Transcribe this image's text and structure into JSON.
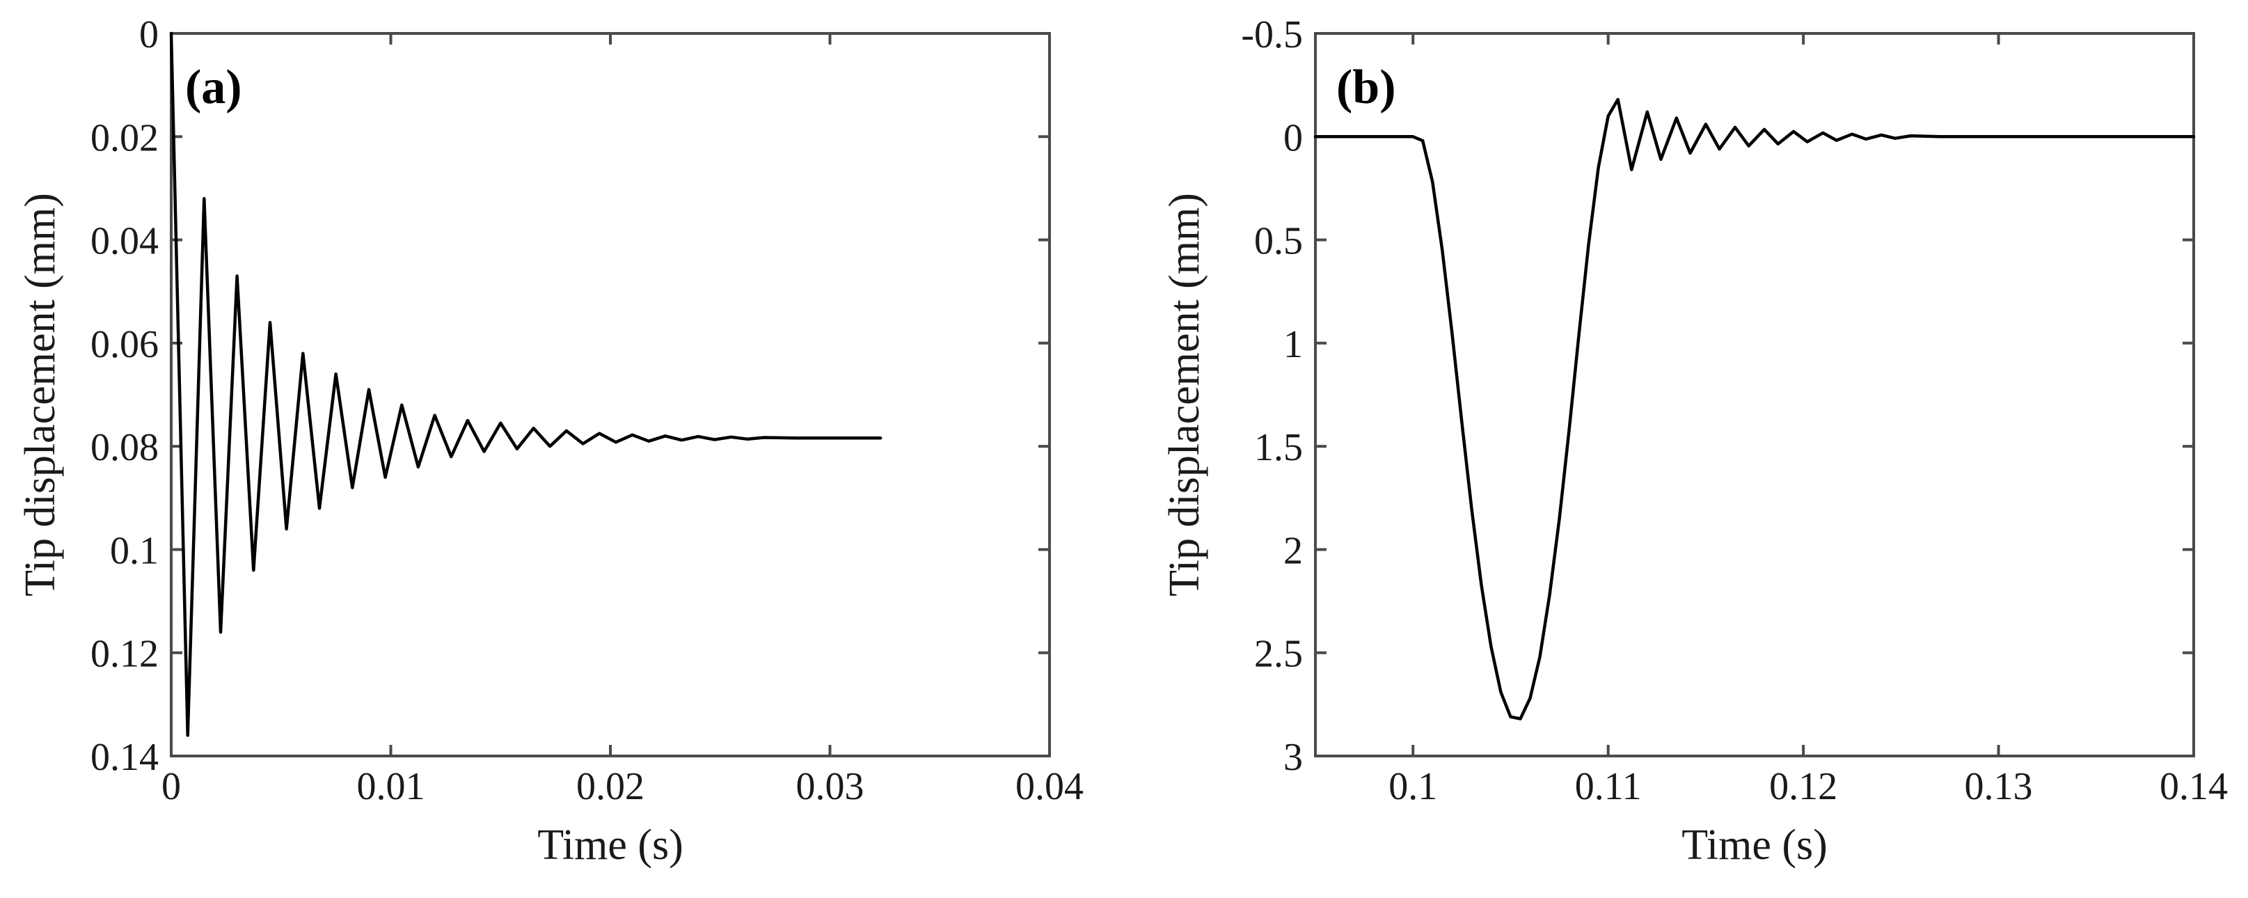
{
  "chart_data": [
    {
      "type": "line",
      "panel_label": "(a)",
      "xlabel": "Time (s)",
      "ylabel": "Tip displacement (mm)",
      "xlim": [
        0,
        0.04
      ],
      "ylim": [
        0,
        0.14
      ],
      "y_axis_inverted": true,
      "xticks": [
        0,
        0.01,
        0.02,
        0.03,
        0.04
      ],
      "xtick_labels": [
        "0",
        "0.01",
        "0.02",
        "0.03",
        "0.04"
      ],
      "yticks": [
        0,
        0.02,
        0.04,
        0.06,
        0.08,
        0.1,
        0.12,
        0.14
      ],
      "ytick_labels": [
        "0",
        "0.02",
        "0.04",
        "0.06",
        "0.08",
        "0.1",
        "0.12",
        "0.14"
      ],
      "grid": false,
      "series": [
        {
          "color": "#000000",
          "x": [
            0,
            0.00075,
            0.0015,
            0.00225,
            0.003,
            0.00375,
            0.0045,
            0.00525,
            0.006,
            0.00675,
            0.0075,
            0.00825,
            0.009,
            0.00975,
            0.0105,
            0.01125,
            0.012,
            0.01275,
            0.0135,
            0.01425,
            0.015,
            0.01575,
            0.0165,
            0.01725,
            0.018,
            0.01875,
            0.0195,
            0.02025,
            0.021,
            0.02175,
            0.0225,
            0.02325,
            0.024,
            0.02475,
            0.0255,
            0.02625,
            0.027,
            0.0285,
            0.03,
            0.0315,
            0.0323
          ],
          "y": [
            0,
            0.136,
            0.032,
            0.116,
            0.047,
            0.104,
            0.056,
            0.096,
            0.062,
            0.092,
            0.066,
            0.088,
            0.069,
            0.086,
            0.072,
            0.084,
            0.074,
            0.082,
            0.075,
            0.081,
            0.0755,
            0.0805,
            0.0765,
            0.08,
            0.077,
            0.0795,
            0.0775,
            0.0792,
            0.0778,
            0.079,
            0.078,
            0.0788,
            0.0781,
            0.0787,
            0.0782,
            0.0786,
            0.0783,
            0.0784,
            0.0784,
            0.0784,
            0.0784
          ]
        }
      ]
    },
    {
      "type": "line",
      "panel_label": "(b)",
      "xlabel": "Time (s)",
      "ylabel": "Tip displacement (mm)",
      "xlim": [
        0.095,
        0.14
      ],
      "ylim": [
        -0.5,
        3
      ],
      "y_axis_inverted": true,
      "xticks": [
        0.1,
        0.11,
        0.12,
        0.13,
        0.14
      ],
      "xtick_labels": [
        "0.1",
        "0.11",
        "0.12",
        "0.13",
        "0.14"
      ],
      "yticks": [
        -0.5,
        0,
        0.5,
        1,
        1.5,
        2,
        2.5,
        3
      ],
      "ytick_labels": [
        "-0.5",
        "0",
        "0.5",
        "1",
        "1.5",
        "2",
        "2.5",
        "3"
      ],
      "grid": false,
      "series": [
        {
          "color": "#000000",
          "x": [
            0.095,
            0.1,
            0.1005,
            0.101,
            0.1015,
            0.102,
            0.1025,
            0.103,
            0.1035,
            0.104,
            0.1045,
            0.105,
            0.1055,
            0.106,
            0.1065,
            0.107,
            0.1075,
            0.108,
            0.1085,
            0.109,
            0.1095,
            0.11,
            0.1105,
            0.1112,
            0.112,
            0.1127,
            0.1135,
            0.1142,
            0.115,
            0.1157,
            0.1165,
            0.1172,
            0.118,
            0.1187,
            0.1195,
            0.1202,
            0.121,
            0.1217,
            0.1225,
            0.1232,
            0.124,
            0.1247,
            0.1255,
            0.127,
            0.13,
            0.14
          ],
          "y": [
            0,
            0,
            0.02,
            0.22,
            0.55,
            0.95,
            1.38,
            1.8,
            2.17,
            2.47,
            2.69,
            2.81,
            2.82,
            2.72,
            2.52,
            2.22,
            1.85,
            1.42,
            0.96,
            0.52,
            0.15,
            -0.1,
            -0.18,
            0.16,
            -0.12,
            0.11,
            -0.09,
            0.08,
            -0.06,
            0.06,
            -0.045,
            0.045,
            -0.035,
            0.035,
            -0.025,
            0.025,
            -0.018,
            0.018,
            -0.012,
            0.012,
            -0.008,
            0.008,
            -0.004,
            0,
            0,
            0
          ]
        }
      ]
    }
  ]
}
